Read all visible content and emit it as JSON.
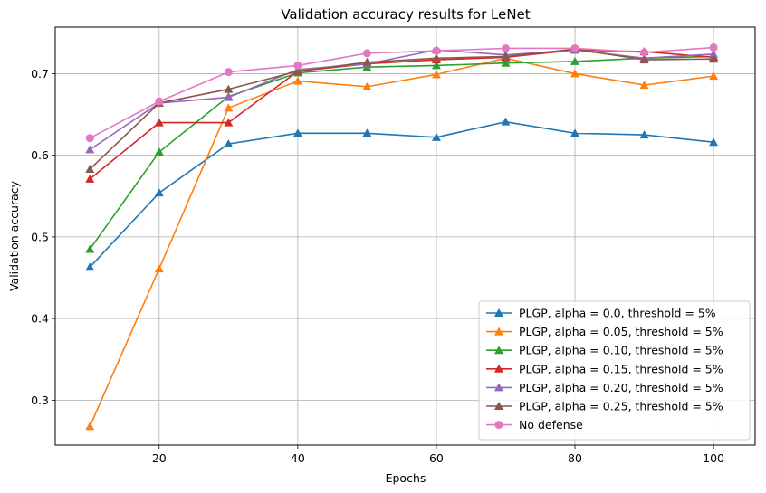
{
  "chart_data": {
    "type": "line",
    "title": "Validation accuracy results for LeNet",
    "xlabel": "Epochs",
    "ylabel": "Validation accuracy",
    "xlim": [
      5,
      106
    ],
    "ylim": [
      0.245,
      0.757
    ],
    "xticks": [
      20,
      40,
      60,
      80,
      100
    ],
    "yticks": [
      0.3,
      0.4,
      0.5,
      0.6,
      0.7
    ],
    "ytick_labels": [
      "0.3",
      "0.4",
      "0.5",
      "0.6",
      "0.7"
    ],
    "grid": true,
    "legend_position": "lower-right",
    "x": [
      10,
      20,
      30,
      40,
      50,
      60,
      70,
      80,
      90,
      100
    ],
    "series": [
      {
        "name": "PLGP, alpha = 0.0, threshold = 5%",
        "color": "#1f77b4",
        "marker": "triangle",
        "values": [
          0.463,
          0.554,
          0.614,
          0.627,
          0.627,
          0.622,
          0.641,
          0.627,
          0.625,
          0.616
        ]
      },
      {
        "name": "PLGP, alpha = 0.05, threshold = 5%",
        "color": "#ff7f0e",
        "marker": "triangle",
        "values": [
          0.268,
          0.461,
          0.658,
          0.691,
          0.684,
          0.699,
          0.719,
          0.7,
          0.686,
          0.697
        ]
      },
      {
        "name": "PLGP, alpha = 0.10, threshold = 5%",
        "color": "#2ca02c",
        "marker": "triangle",
        "values": [
          0.485,
          0.604,
          0.672,
          0.701,
          0.708,
          0.71,
          0.713,
          0.715,
          0.719,
          0.721
        ]
      },
      {
        "name": "PLGP, alpha = 0.15, threshold = 5%",
        "color": "#d62728",
        "marker": "triangle",
        "values": [
          0.571,
          0.64,
          0.64,
          0.703,
          0.712,
          0.717,
          0.72,
          0.729,
          0.727,
          0.72
        ]
      },
      {
        "name": "PLGP, alpha = 0.20, threshold = 5%",
        "color": "#9467bd",
        "marker": "triangle",
        "values": [
          0.607,
          0.664,
          0.671,
          0.705,
          0.712,
          0.729,
          0.723,
          0.729,
          0.719,
          0.724
        ]
      },
      {
        "name": "PLGP, alpha = 0.25, threshold = 5%",
        "color": "#8c564b",
        "marker": "triangle",
        "values": [
          0.583,
          0.664,
          0.681,
          0.703,
          0.714,
          0.719,
          0.721,
          0.73,
          0.717,
          0.718
        ]
      },
      {
        "name": "No defense",
        "color": "#e377c2",
        "marker": "circle",
        "values": [
          0.621,
          0.666,
          0.702,
          0.71,
          0.725,
          0.728,
          0.731,
          0.731,
          0.726,
          0.732
        ]
      }
    ]
  }
}
